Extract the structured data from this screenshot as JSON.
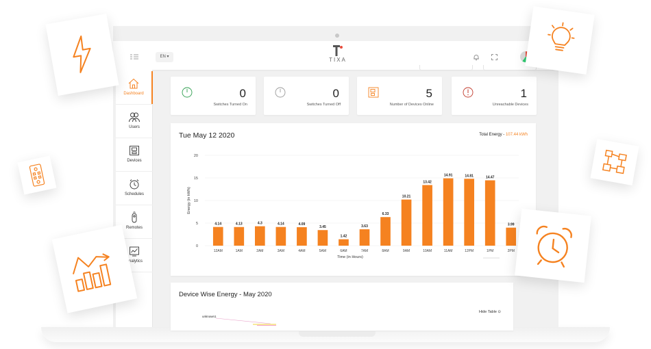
{
  "header": {
    "language": "EN ▾",
    "logo_text": "TIXA",
    "brand_color": "#f58220",
    "logo_accent": "#e74c3c"
  },
  "sidebar": {
    "items": [
      {
        "label": "Dashboard",
        "icon": "home-icon",
        "active": true
      },
      {
        "label": "Users",
        "icon": "users-icon",
        "active": false
      },
      {
        "label": "Devices",
        "icon": "device-icon",
        "active": false
      },
      {
        "label": "Schedules",
        "icon": "clock-icon",
        "active": false
      },
      {
        "label": "Remotes",
        "icon": "remote-icon",
        "active": false
      },
      {
        "label": "Analytics",
        "icon": "analytics-icon",
        "active": false
      }
    ]
  },
  "stats": [
    {
      "value": "0",
      "label": "Switches Turned On",
      "icon": "power-on-icon",
      "color": "#2e9e4f"
    },
    {
      "value": "0",
      "label": "Switches Turned Off",
      "icon": "power-off-icon",
      "color": "#9a9a9a"
    },
    {
      "value": "5",
      "label": "Number of Devices Online",
      "icon": "device-online-icon",
      "color": "#f58220"
    },
    {
      "value": "1",
      "label": "Unreachable Devices",
      "icon": "alert-icon",
      "color": "#c0392b"
    }
  ],
  "energy_chart": {
    "date": "Tue May 12 2020",
    "total_label": "Total Energy - ",
    "total_value": "107.44 kWh"
  },
  "chart_data": {
    "type": "bar",
    "categories": [
      "12AM",
      "1AM",
      "2AM",
      "3AM",
      "4AM",
      "5AM",
      "6AM",
      "7AM",
      "8AM",
      "9AM",
      "10AM",
      "11AM",
      "12PM",
      "1PM",
      "2PM"
    ],
    "values": [
      4.14,
      4.13,
      4.3,
      4.14,
      4.09,
      3.45,
      1.42,
      3.63,
      6.33,
      10.21,
      13.42,
      14.91,
      14.81,
      14.47,
      3.99
    ],
    "value_labels": [
      "4.14",
      "4.13",
      "4.3",
      "4.14",
      "4.09",
      "3.45",
      "1.42",
      "3.63",
      "6.33",
      "10.21",
      "13.42",
      "14.91",
      "14.81",
      "14.47",
      "3.99"
    ],
    "yticks": [
      "0",
      "5",
      "10",
      "15",
      "20"
    ],
    "ylim": [
      0,
      20
    ],
    "xlabel": "Time (in Hours)",
    "ylabel": "Energy (in kWh)",
    "bar_color": "#f58220",
    "grid": true
  },
  "device_chart": {
    "title": "Device Wise Energy - May 2020",
    "hide_table": "Hide Table",
    "series_label": "unknown1"
  },
  "decorations": [
    {
      "icon": "lightning-icon"
    },
    {
      "icon": "lightbulb-icon"
    },
    {
      "icon": "remote-control-icon"
    },
    {
      "icon": "flowchart-icon"
    },
    {
      "icon": "analytics-chart-icon"
    },
    {
      "icon": "alarm-clock-icon"
    }
  ]
}
